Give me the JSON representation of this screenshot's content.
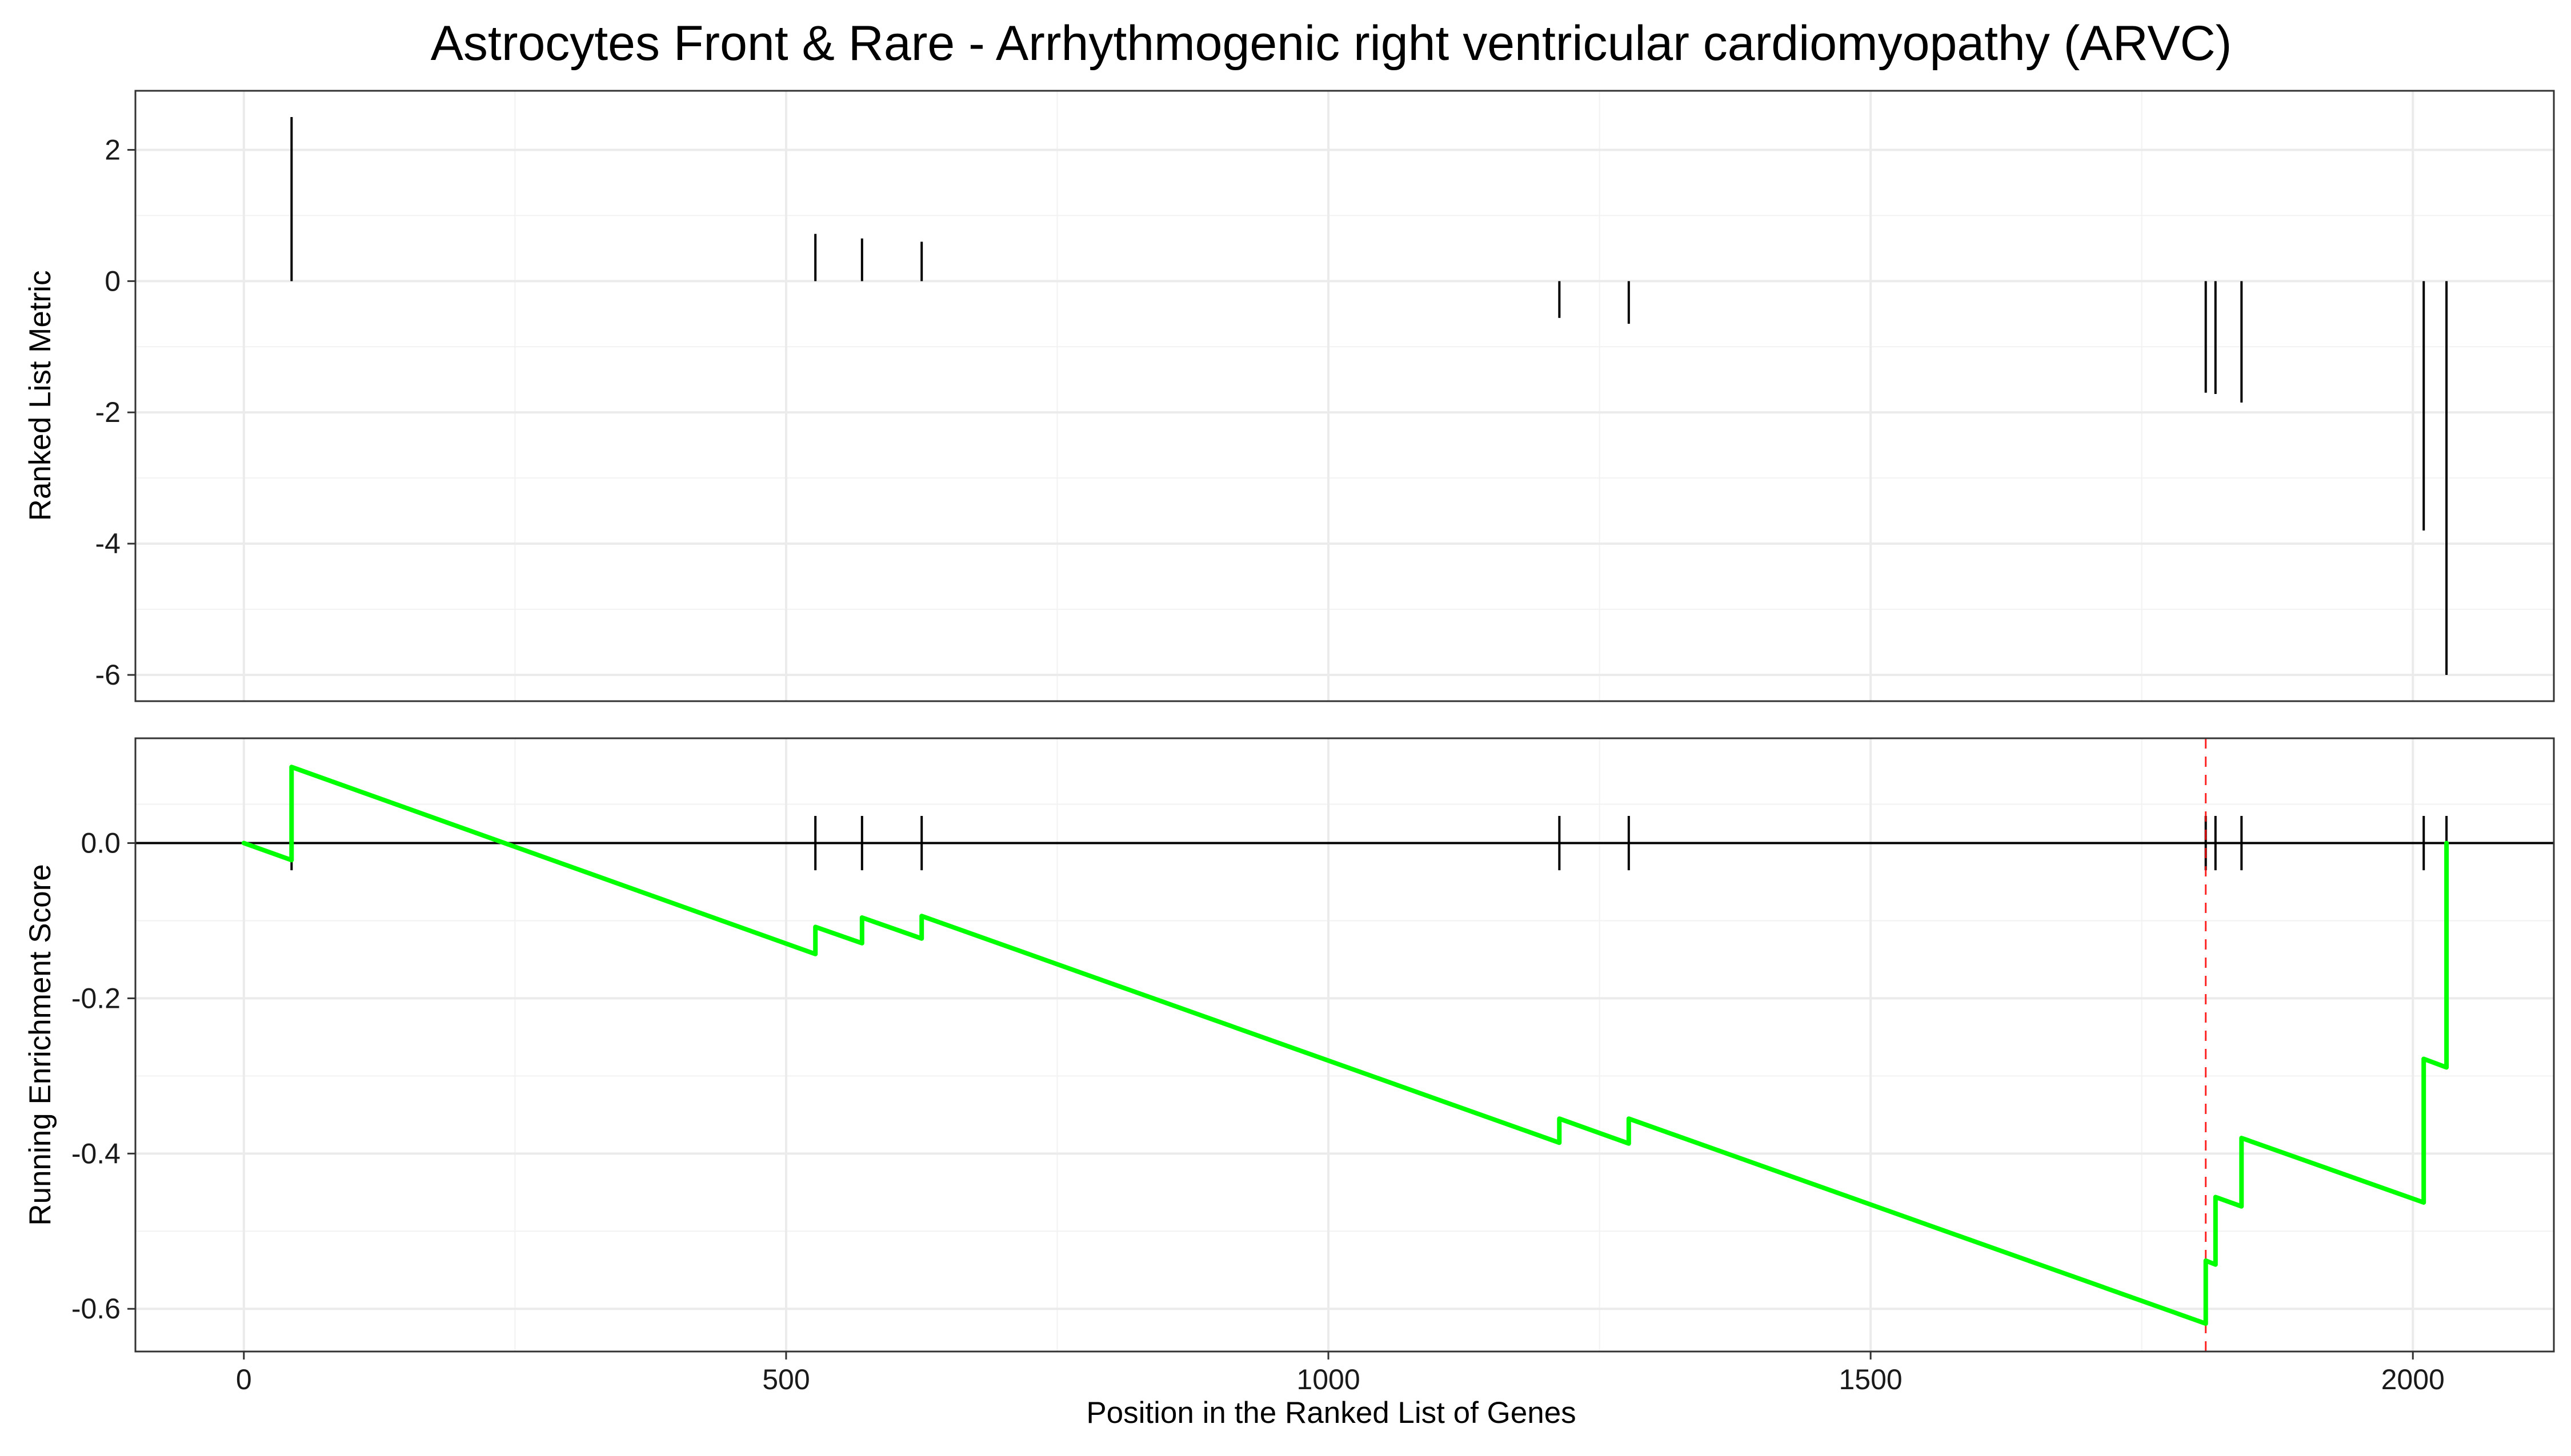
{
  "chart_data": [
    {
      "type": "bar",
      "title": "Astrocytes Front & Rare - Arrhythmogenic right ventricular cardiomyopathy (ARVC)",
      "xlabel": "",
      "ylabel": "Ranked List Metric",
      "xlim": [
        -100,
        2130
      ],
      "ylim": [
        -6.4,
        2.9
      ],
      "yticks": [
        2,
        0,
        -2,
        -4,
        -6
      ],
      "ytick_labels": [
        "2",
        "0",
        "-2",
        "-4",
        "-6"
      ],
      "grid": true,
      "x": [
        44,
        527,
        570,
        625,
        1213,
        1277,
        1809,
        1818,
        1842,
        2010,
        2031
      ],
      "values": [
        2.5,
        0.72,
        0.65,
        0.6,
        -0.56,
        -0.65,
        -1.7,
        -1.72,
        -1.85,
        -3.8,
        -6.0
      ]
    },
    {
      "type": "line",
      "xlabel": "Position in the Ranked List of Genes",
      "ylabel": "Running Enrichment Score",
      "xlim": [
        -100,
        2130
      ],
      "ylim": [
        -0.655,
        0.135
      ],
      "xticks": [
        0,
        500,
        1000,
        1500,
        2000
      ],
      "xtick_labels": [
        "0",
        "500",
        "1000",
        "1500",
        "2000"
      ],
      "yticks": [
        0.0,
        -0.2,
        -0.4,
        -0.6
      ],
      "ytick_labels": [
        "0.0",
        "-0.2",
        "-0.4",
        "-0.6"
      ],
      "grid": true,
      "hit_positions": [
        44,
        527,
        570,
        625,
        1213,
        1277,
        1809,
        1818,
        1842,
        2010,
        2031
      ],
      "series_color": "#00ff00",
      "max_deviation_x": 1809,
      "max_deviation_color": "#ff0000",
      "x": [
        0,
        44,
        44,
        527,
        527,
        570,
        570,
        625,
        625,
        1213,
        1213,
        1277,
        1277,
        1809,
        1809,
        1818,
        1818,
        1842,
        1842,
        2010,
        2010,
        2031,
        2031
      ],
      "y": [
        0.0,
        -0.022,
        0.098,
        -0.143,
        -0.108,
        -0.129,
        -0.096,
        -0.123,
        -0.094,
        -0.386,
        -0.355,
        -0.387,
        -0.355,
        -0.619,
        -0.538,
        -0.543,
        -0.456,
        -0.468,
        -0.38,
        -0.463,
        -0.278,
        -0.289,
        0.0
      ]
    }
  ]
}
